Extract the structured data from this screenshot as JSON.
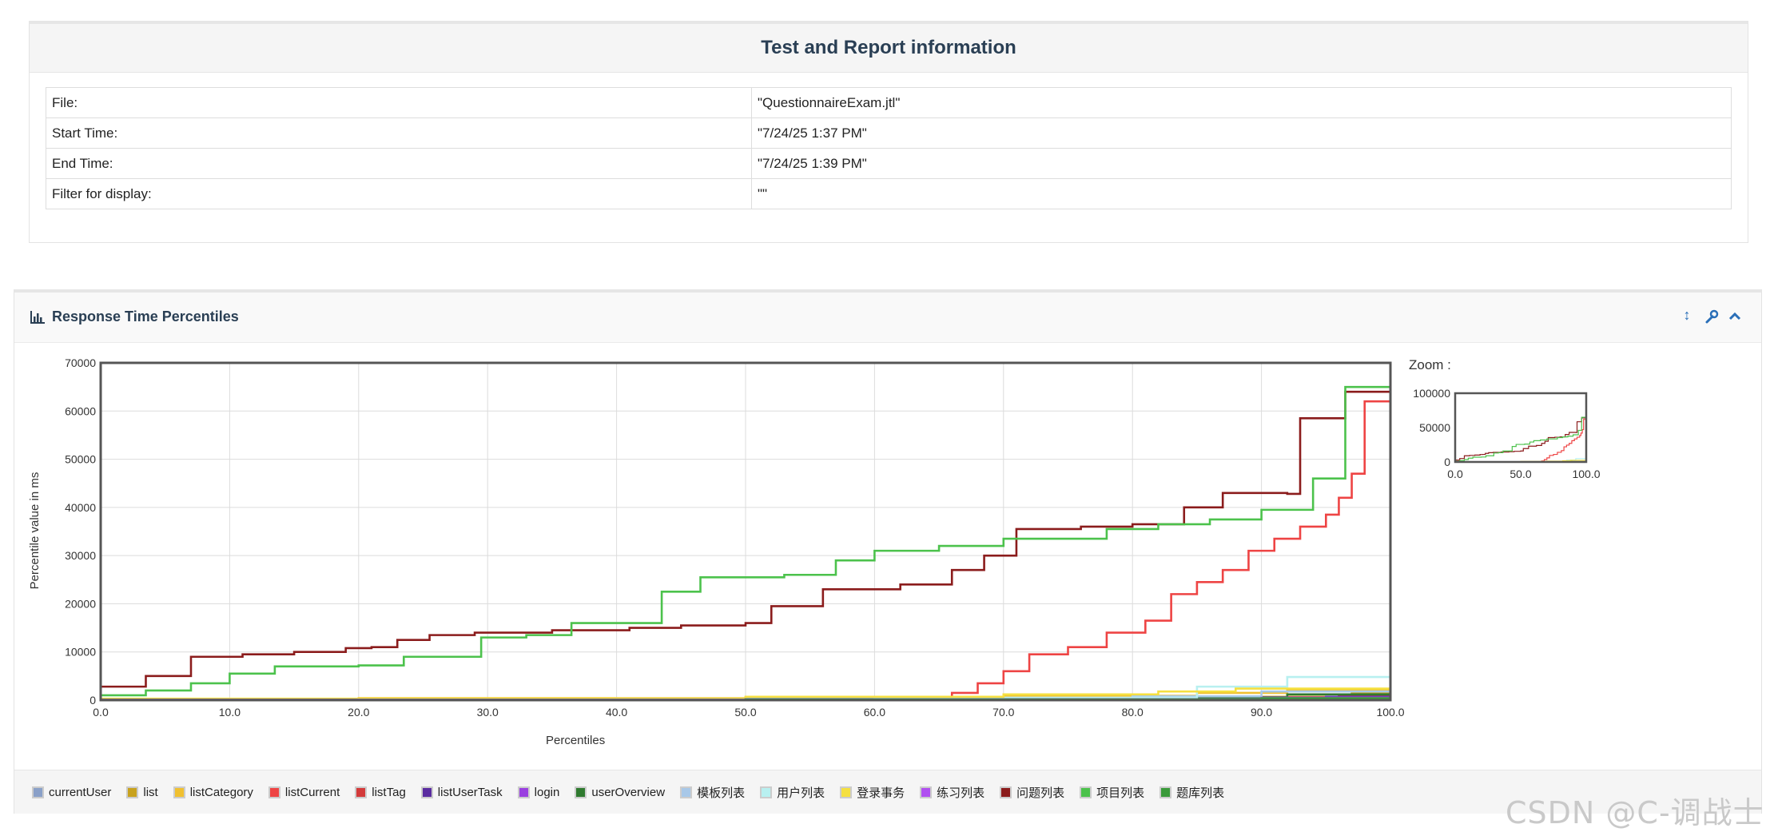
{
  "info": {
    "title": "Test and Report information",
    "rows": [
      {
        "key": "File:",
        "value": "\"QuestionnaireExam.jtl\""
      },
      {
        "key": "Start Time:",
        "value": "\"7/24/25 1:37 PM\""
      },
      {
        "key": "End Time:",
        "value": "\"7/24/25 1:39 PM\""
      },
      {
        "key": "Filter for display:",
        "value": "\"\""
      }
    ]
  },
  "panel": {
    "title": "Response Time Percentiles",
    "icons": [
      "bar-chart-icon",
      "resize-icon",
      "wrench-icon",
      "chevron-up-icon"
    ]
  },
  "chart_data": {
    "type": "line",
    "title": "Response Time Percentiles",
    "xlabel": "Percentiles",
    "ylabel": "Percentile value in ms",
    "xlim": [
      0,
      100
    ],
    "ylim": [
      0,
      70000
    ],
    "x_ticks": [
      "0.0",
      "10.0",
      "20.0",
      "30.0",
      "40.0",
      "50.0",
      "60.0",
      "70.0",
      "80.0",
      "90.0",
      "100.0"
    ],
    "y_ticks": [
      "0",
      "10000",
      "20000",
      "30000",
      "40000",
      "50000",
      "60000",
      "70000"
    ],
    "grid": true,
    "legend_position": "bottom",
    "zoom": {
      "label": "Zoom :",
      "ylim": [
        0,
        100000
      ],
      "x_ticks": [
        "0.0",
        "50.0",
        "100.0"
      ],
      "y_ticks": [
        "0",
        "50000",
        "100000"
      ]
    },
    "series": [
      {
        "name": "currentUser",
        "color": "#8aa0c8",
        "points": [
          [
            0,
            150
          ],
          [
            30,
            200
          ],
          [
            60,
            250
          ],
          [
            85,
            300
          ],
          [
            95,
            400
          ],
          [
            100,
            600
          ]
        ]
      },
      {
        "name": "list",
        "color": "#c8a21e",
        "points": [
          [
            0,
            200
          ],
          [
            40,
            300
          ],
          [
            70,
            400
          ],
          [
            90,
            700
          ],
          [
            97,
            1500
          ],
          [
            100,
            2500
          ]
        ]
      },
      {
        "name": "listCategory",
        "color": "#f0c030",
        "points": [
          [
            0,
            250
          ],
          [
            20,
            400
          ],
          [
            50,
            600
          ],
          [
            70,
            900
          ],
          [
            85,
            1500
          ],
          [
            92,
            2200
          ],
          [
            100,
            2800
          ]
        ]
      },
      {
        "name": "listCurrent",
        "color": "#ee4444",
        "points": [
          [
            0,
            200
          ],
          [
            65,
            400
          ],
          [
            66,
            1500
          ],
          [
            68,
            3500
          ],
          [
            70,
            6000
          ],
          [
            72,
            9500
          ],
          [
            75,
            11000
          ],
          [
            78,
            14000
          ],
          [
            81,
            16500
          ],
          [
            83,
            22000
          ],
          [
            85,
            24500
          ],
          [
            87,
            27000
          ],
          [
            89,
            31000
          ],
          [
            91,
            33500
          ],
          [
            93,
            36000
          ],
          [
            95,
            38500
          ],
          [
            96,
            42000
          ],
          [
            97,
            47000
          ],
          [
            98,
            62000
          ],
          [
            100,
            64500
          ]
        ]
      },
      {
        "name": "listTag",
        "color": "#d33a3a",
        "points": [
          [
            0,
            150
          ],
          [
            40,
            250
          ],
          [
            70,
            400
          ],
          [
            90,
            600
          ],
          [
            96,
            900
          ],
          [
            100,
            1200
          ]
        ]
      },
      {
        "name": "listUserTask",
        "color": "#5a2ca0",
        "points": [
          [
            0,
            100
          ],
          [
            50,
            200
          ],
          [
            80,
            400
          ],
          [
            95,
            700
          ],
          [
            100,
            1000
          ]
        ]
      },
      {
        "name": "login",
        "color": "#9a40e0",
        "points": [
          [
            0,
            80
          ],
          [
            60,
            150
          ],
          [
            90,
            300
          ],
          [
            100,
            500
          ]
        ]
      },
      {
        "name": "userOverview",
        "color": "#2f7a2f",
        "points": [
          [
            0,
            100
          ],
          [
            50,
            250
          ],
          [
            85,
            600
          ],
          [
            92,
            1200
          ],
          [
            100,
            2200
          ]
        ]
      },
      {
        "name": "模板列表",
        "color": "#a8c8e8",
        "points": [
          [
            0,
            150
          ],
          [
            40,
            300
          ],
          [
            80,
            800
          ],
          [
            90,
            1800
          ],
          [
            100,
            3000
          ]
        ]
      },
      {
        "name": "用户列表",
        "color": "#b8f0f0",
        "points": [
          [
            0,
            200
          ],
          [
            60,
            500
          ],
          [
            85,
            2800
          ],
          [
            92,
            4800
          ],
          [
            100,
            5000
          ]
        ]
      },
      {
        "name": "登录事务",
        "color": "#f5e040",
        "points": [
          [
            0,
            300
          ],
          [
            50,
            700
          ],
          [
            70,
            1200
          ],
          [
            82,
            1800
          ],
          [
            88,
            2400
          ],
          [
            100,
            3500
          ]
        ]
      },
      {
        "name": "练习列表",
        "color": "#b050f0",
        "points": [
          [
            0,
            100
          ],
          [
            50,
            200
          ],
          [
            90,
            500
          ],
          [
            100,
            900
          ]
        ]
      },
      {
        "name": "问题列表",
        "color": "#8b1c1c",
        "points": [
          [
            0,
            2800
          ],
          [
            3.5,
            5000
          ],
          [
            7,
            9000
          ],
          [
            11,
            9500
          ],
          [
            15,
            10000
          ],
          [
            19,
            10800
          ],
          [
            21,
            11000
          ],
          [
            23,
            12500
          ],
          [
            25.5,
            13500
          ],
          [
            29,
            14000
          ],
          [
            35,
            14500
          ],
          [
            41,
            15000
          ],
          [
            45,
            15500
          ],
          [
            50,
            16000
          ],
          [
            52,
            19500
          ],
          [
            56,
            23000
          ],
          [
            62,
            24000
          ],
          [
            66,
            27000
          ],
          [
            68.5,
            30000
          ],
          [
            71,
            35500
          ],
          [
            76,
            36000
          ],
          [
            80,
            36500
          ],
          [
            84,
            40000
          ],
          [
            87,
            43000
          ],
          [
            92,
            42800
          ],
          [
            93,
            58500
          ],
          [
            96,
            58500
          ],
          [
            96.5,
            64000
          ],
          [
            100,
            64000
          ]
        ]
      },
      {
        "name": "项目列表",
        "color": "#4cc24c",
        "points": [
          [
            0,
            1000
          ],
          [
            3.5,
            2000
          ],
          [
            7,
            3500
          ],
          [
            10,
            5500
          ],
          [
            13.5,
            7000
          ],
          [
            20,
            7200
          ],
          [
            23.5,
            9000
          ],
          [
            29.5,
            13000
          ],
          [
            33,
            13500
          ],
          [
            36.5,
            16000
          ],
          [
            43.5,
            22500
          ],
          [
            46.5,
            25500
          ],
          [
            53,
            26000
          ],
          [
            57,
            29000
          ],
          [
            60,
            31000
          ],
          [
            65,
            32000
          ],
          [
            70,
            33500
          ],
          [
            78,
            35500
          ],
          [
            82,
            36500
          ],
          [
            86,
            37500
          ],
          [
            90,
            39500
          ],
          [
            94,
            46000
          ],
          [
            96,
            46000
          ],
          [
            96.5,
            65000
          ],
          [
            100,
            65000
          ]
        ]
      },
      {
        "name": "题库列表",
        "color": "#3a9a3a",
        "points": [
          [
            0,
            50
          ],
          [
            50,
            150
          ],
          [
            90,
            400
          ],
          [
            100,
            800
          ]
        ]
      }
    ]
  },
  "watermark": "CSDN @C-调战士"
}
